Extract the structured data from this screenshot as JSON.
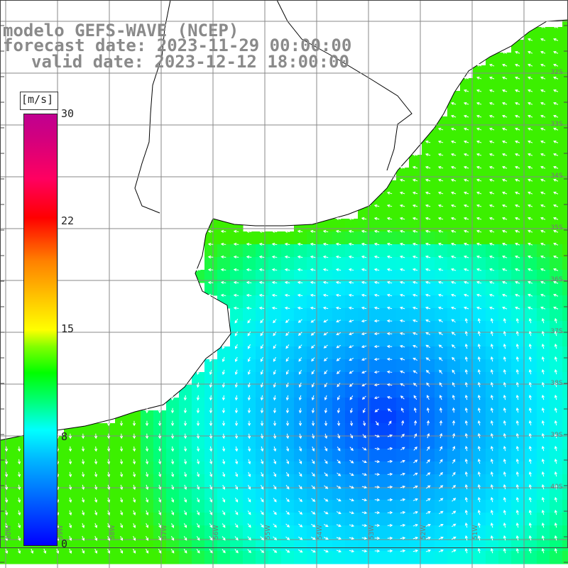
{
  "title": {
    "line1": "modelo GEFS-WAVE (NCEP)",
    "line2": "forecast date: 2023-11-29 00:00:00",
    "line3": "valid date: 2023-12-12 18:00:00"
  },
  "legend": {
    "unit": "[m/s]",
    "ticks": [
      "30",
      "22",
      "15",
      "8",
      "0"
    ],
    "range": [
      0,
      30
    ]
  },
  "axes": {
    "lat_labels": [
      "32S",
      "33S",
      "34S",
      "35S",
      "36S",
      "37S",
      "38S",
      "39S",
      "40S"
    ],
    "lon_labels": [
      "60W",
      "59W",
      "58W",
      "57W",
      "56W",
      "55W",
      "54W",
      "53W",
      "52W",
      "51W"
    ]
  },
  "colors": {
    "land": "#ffffff",
    "grid": "#888888",
    "coast": "#000000",
    "title": "#8a8a8a",
    "arrow": "#ffffff"
  }
}
